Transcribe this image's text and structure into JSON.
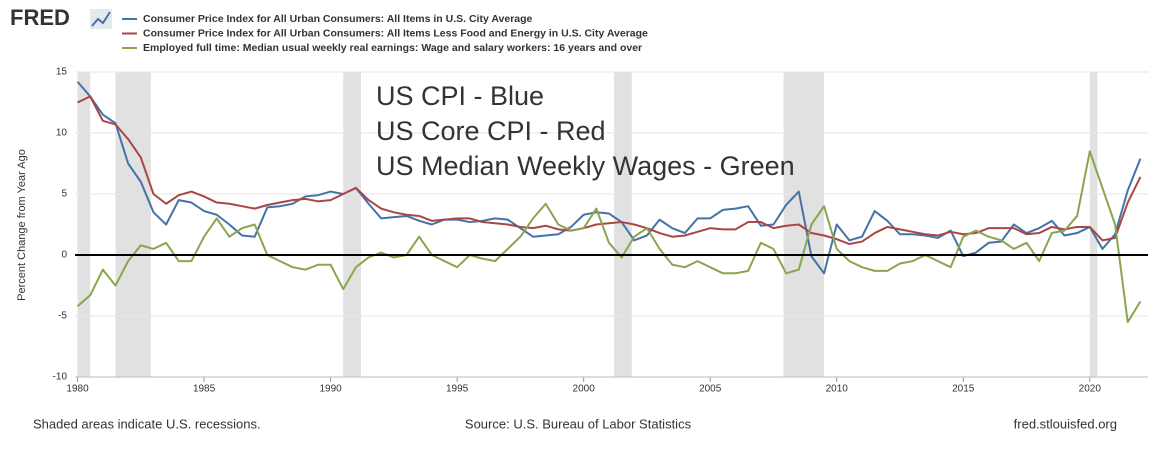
{
  "chart_data": {
    "type": "line",
    "brand": "FRED",
    "ylabel": "Percent Change from Year Ago",
    "annotations": [
      "US CPI - Blue",
      "US Core CPI - Red",
      "US Median Weekly Wages - Green"
    ],
    "note": "Shaded areas indicate U.S. recessions.",
    "source": "Source: U.S. Bureau of Labor Statistics",
    "site": "fred.stlouisfed.org",
    "xlim": [
      1979.9,
      2022.3
    ],
    "ylim": [
      -10,
      15
    ],
    "xticks": [
      1980,
      1985,
      1990,
      1995,
      2000,
      2005,
      2010,
      2015,
      2020
    ],
    "yticks": [
      -10,
      -5,
      0,
      5,
      10,
      15
    ],
    "grid": true,
    "reference_line": 0,
    "recessions": [
      [
        1980.0,
        1980.5
      ],
      [
        1981.5,
        1982.9
      ],
      [
        1990.5,
        1991.2
      ],
      [
        2001.2,
        2001.9
      ],
      [
        2007.9,
        2009.5
      ],
      [
        2020.0,
        2020.3
      ]
    ],
    "recession_color": "#e1e1e1",
    "x": [
      1980,
      1980.5,
      1981,
      1981.5,
      1982,
      1982.5,
      1983,
      1983.5,
      1984,
      1984.5,
      1985,
      1985.5,
      1986,
      1986.5,
      1987,
      1987.5,
      1988,
      1988.5,
      1989,
      1989.5,
      1990,
      1990.5,
      1991,
      1991.5,
      1992,
      1992.5,
      1993,
      1993.5,
      1994,
      1994.5,
      1995,
      1995.5,
      1996,
      1996.5,
      1997,
      1997.5,
      1998,
      1998.5,
      1999,
      1999.5,
      2000,
      2000.5,
      2001,
      2001.5,
      2002,
      2002.5,
      2003,
      2003.5,
      2004,
      2004.5,
      2005,
      2005.5,
      2006,
      2006.5,
      2007,
      2007.5,
      2008,
      2008.5,
      2009,
      2009.5,
      2010,
      2010.5,
      2011,
      2011.5,
      2012,
      2012.5,
      2013,
      2013.5,
      2014,
      2014.5,
      2015,
      2015.5,
      2016,
      2016.5,
      2017,
      2017.5,
      2018,
      2018.5,
      2019,
      2019.5,
      2020,
      2020.5,
      2021,
      2021.5,
      2022
    ],
    "series": [
      {
        "name": "Consumer Price Index for All Urban Consumers: All Items in U.S. City Average",
        "color": "#4572a7",
        "values": [
          14.2,
          13,
          11.5,
          10.8,
          7.5,
          6,
          3.5,
          2.5,
          4.5,
          4.3,
          3.6,
          3.3,
          2.5,
          1.6,
          1.5,
          3.9,
          4.0,
          4.2,
          4.8,
          4.9,
          5.2,
          5.0,
          5.5,
          4.2,
          3.0,
          3.1,
          3.2,
          2.8,
          2.5,
          2.9,
          2.9,
          2.7,
          2.8,
          3.0,
          2.9,
          2.2,
          1.5,
          1.6,
          1.7,
          2.3,
          3.3,
          3.5,
          3.4,
          2.7,
          1.2,
          1.6,
          2.9,
          2.2,
          1.8,
          3.0,
          3.0,
          3.7,
          3.8,
          4.0,
          2.4,
          2.5,
          4.1,
          5.2,
          -0.1,
          -1.5,
          2.5,
          1.2,
          1.5,
          3.6,
          2.8,
          1.7,
          1.7,
          1.6,
          1.4,
          2.0,
          -0.1,
          0.2,
          1.0,
          1.1,
          2.5,
          1.8,
          2.2,
          2.8,
          1.6,
          1.8,
          2.3,
          0.5,
          1.7,
          5.3,
          7.9
        ]
      },
      {
        "name": "Consumer Price Index for All Urban Consumers: All Items Less Food and Energy in U.S. City Average",
        "color": "#aa4643",
        "values": [
          12.5,
          13,
          11,
          10.7,
          9.5,
          8,
          5,
          4.2,
          4.9,
          5.2,
          4.8,
          4.3,
          4.2,
          4.0,
          3.8,
          4.1,
          4.3,
          4.5,
          4.6,
          4.4,
          4.5,
          5.0,
          5.5,
          4.5,
          3.8,
          3.5,
          3.3,
          3.2,
          2.8,
          2.9,
          3.0,
          3.0,
          2.7,
          2.6,
          2.5,
          2.3,
          2.2,
          2.4,
          2.1,
          2.0,
          2.2,
          2.5,
          2.6,
          2.7,
          2.5,
          2.2,
          1.8,
          1.5,
          1.6,
          1.9,
          2.2,
          2.1,
          2.1,
          2.7,
          2.7,
          2.2,
          2.4,
          2.5,
          1.8,
          1.6,
          1.3,
          0.9,
          1.1,
          1.8,
          2.3,
          2.1,
          1.9,
          1.7,
          1.6,
          1.9,
          1.7,
          1.8,
          2.2,
          2.2,
          2.2,
          1.7,
          1.8,
          2.3,
          2.1,
          2.3,
          2.3,
          1.2,
          1.4,
          4.3,
          6.4
        ]
      },
      {
        "name": "Employed full time: Median usual weekly real earnings: Wage and salary workers: 16 years and over",
        "color": "#89a54e",
        "values": [
          -4.2,
          -3.3,
          -1.2,
          -2.5,
          -0.5,
          0.8,
          0.5,
          1.0,
          -0.5,
          -0.5,
          1.5,
          3.0,
          1.5,
          2.2,
          2.5,
          0.0,
          -0.5,
          -1.0,
          -1.2,
          -0.8,
          -0.8,
          -2.8,
          -1.0,
          -0.2,
          0.2,
          -0.2,
          0.0,
          1.5,
          0.0,
          -0.5,
          -1.0,
          0.0,
          -0.3,
          -0.5,
          0.5,
          1.5,
          3.0,
          4.2,
          2.5,
          2.0,
          2.2,
          3.8,
          1.0,
          -0.2,
          1.5,
          2.2,
          0.5,
          -0.8,
          -1.0,
          -0.5,
          -1.0,
          -1.5,
          -1.5,
          -1.3,
          1.0,
          0.5,
          -1.5,
          -1.2,
          2.5,
          4.0,
          0.5,
          -0.5,
          -1.0,
          -1.3,
          -1.3,
          -0.7,
          -0.5,
          0.0,
          -0.5,
          -1.0,
          1.5,
          2.0,
          1.5,
          1.2,
          0.5,
          1.0,
          -0.5,
          1.8,
          2.0,
          3.2,
          8.5,
          5.5,
          2.5,
          -5.5,
          -3.8
        ]
      }
    ]
  }
}
